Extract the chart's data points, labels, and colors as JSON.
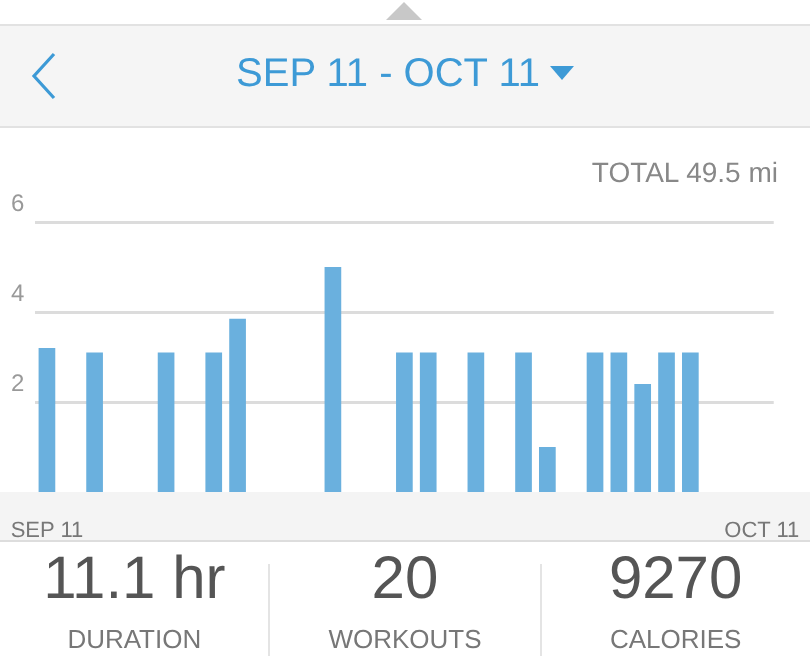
{
  "chart_data": {
    "type": "bar",
    "title": "SEP 11 - OCT 11",
    "subtitle": "TOTAL 49.5 mi",
    "categories": [
      "SEP 11",
      null,
      null,
      null,
      null,
      null,
      null,
      null,
      null,
      null,
      null,
      null,
      null,
      null,
      null,
      null,
      null,
      null,
      null,
      null,
      null,
      null,
      null,
      null,
      null,
      null,
      null,
      null,
      null,
      null,
      "OCT 11"
    ],
    "values": [
      3.2,
      null,
      3.1,
      null,
      null,
      3.1,
      null,
      3.1,
      3.85,
      null,
      null,
      null,
      5.0,
      null,
      null,
      3.1,
      3.1,
      null,
      3.1,
      null,
      3.1,
      1.0,
      null,
      3.1,
      3.1,
      2.4,
      3.1,
      3.1,
      null,
      null,
      null
    ],
    "color": "#6ab0de",
    "ylim": [
      0,
      6
    ],
    "yticks": [
      2,
      4,
      6
    ],
    "grid": "y",
    "annotations": [
      "11.1 hr",
      "DURATION",
      "20",
      "WORKOUTS",
      "9270",
      "CALORIES"
    ]
  }
}
